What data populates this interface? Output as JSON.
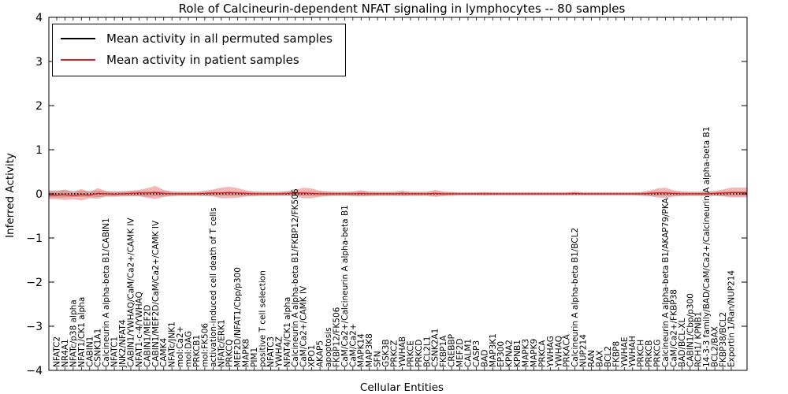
{
  "chart_data": {
    "type": "line",
    "title": "Role of Calcineurin-dependent NFAT signaling in lymphocytes -- 80 samples",
    "xlabel": "Cellular Entities",
    "ylabel": "Inferred Activity",
    "ylim": [
      -4,
      4
    ],
    "ytick_values": [
      -4,
      -3,
      -2,
      -1,
      0,
      1,
      2,
      3,
      4
    ],
    "ytick_labels": [
      "−4",
      "−3",
      "−2",
      "−1",
      "0",
      "1",
      "2",
      "3",
      "4"
    ],
    "grid": false,
    "legend_position": "upper-left",
    "categories": [
      "NFATC2",
      "NR4A1",
      "NFATc/p38 alpha",
      "NFAT1/CK1 alpha",
      "CABIN1",
      "CSNK1A1",
      "Calcineurin A alpha-beta B1/CABIN1",
      "NFATC1",
      "JNK2/NFAT4",
      "CABIN1/YWHAQ/CaM/Ca2+/CAMK IV",
      "NFAT1-c-4/YWHAQ",
      "CABIN1/MEF2D",
      "CABIN1/MEF2D/CaM/Ca2+/CAMK IV",
      "CAMK4",
      "NFATc/JNK1",
      "mol:Ca2+",
      "mol:DAG",
      "PRKCB1",
      "mol:FK506",
      "activation-induced cell death of T cells",
      "NFATc/ERK1",
      "PRKCQ",
      "MEF2D/NFAT1/Cbp/p300",
      "MAPK8",
      "PIM1",
      "positive T cell selection",
      "NFATC3",
      "YWHAZ",
      "NFAT4/CK1 alpha",
      "Calcineurin A alpha-beta B1/FKBP12/FK506",
      "CaM/Ca2+/CAMK IV",
      "XPO1",
      "AKAP5",
      "apoptosis",
      "FKBP12/FK506",
      "CaM/Ca2+/Calcineurin A alpha-beta B1",
      "CaM/Ca2+",
      "MAPK14",
      "MAP3K8",
      "SFN",
      "GSK3B",
      "PRKCZ",
      "YWHAB",
      "PRKCE",
      "PRKCD",
      "BCL2L1",
      "CSNK2A1",
      "FKBP1A",
      "CREBBP",
      "MEF2D",
      "CALM1",
      "CASP3",
      "BAD",
      "MAP3K1",
      "EP300",
      "KPNA2",
      "KPNB1",
      "MAPK3",
      "MAPK9",
      "PRKCA",
      "YWHAG",
      "YWHAQ",
      "PRKACA",
      "Calcineurin A alpha-beta B1/BCL2",
      "NUP214",
      "RAN",
      "BAX",
      "BCL2",
      "FKBP8",
      "YWHAE",
      "YWHAH",
      "PRKCH",
      "PRKCB",
      "PRKCG",
      "Calcineurin A alpha-beta B1/AKAP79/PKA",
      "CaM/Ca2+/FKBP38",
      "BAD/BCL-XL",
      "CABIN1/Cbp/p300",
      "RCH1/ KPNB1",
      "14-3-3 family/BAD/CaM/Ca2+/Calcineurin A alpha-beta B1",
      "BCL2/BAX",
      "FKBP38/BCL2",
      "Exportin 1/Ran/NUP214"
    ],
    "series": [
      {
        "name": "Mean activity in all permuted samples",
        "line_color": "#000000",
        "band_color": "rgba(128,128,128,0.35)",
        "mean": 0,
        "std": [
          0.08,
          0.08,
          0.07,
          0.07,
          0.07,
          0.07,
          0.06,
          0.06,
          0.06,
          0.06,
          0.06,
          0.06,
          0.06,
          0.06,
          0.05,
          0.05,
          0.05,
          0.05,
          0.05,
          0.05,
          0.05,
          0.05,
          0.05,
          0.05,
          0.05,
          0.05,
          0.05,
          0.05,
          0.05,
          0.05,
          0.05,
          0.05,
          0.05,
          0.05,
          0.05,
          0.05,
          0.05,
          0.05,
          0.05,
          0.05,
          0.05,
          0.05,
          0.05,
          0.05,
          0.05,
          0.05,
          0.04,
          0.04,
          0.04,
          0.04,
          0.04,
          0.04,
          0.04,
          0.04,
          0.04,
          0.04,
          0.04,
          0.04,
          0.04,
          0.04,
          0.04,
          0.04,
          0.04,
          0.04,
          0.04,
          0.04,
          0.04,
          0.04,
          0.04,
          0.04,
          0.04,
          0.04,
          0.05,
          0.05,
          0.05,
          0.05,
          0.05,
          0.05,
          0.05,
          0.05,
          0.05,
          0.05,
          0.05
        ]
      },
      {
        "name": "Mean activity in patient samples",
        "line_color": "#dd2222",
        "band_color": "rgba(225,40,40,0.34)",
        "mean": [
          -0.03,
          -0.02,
          -0.04,
          -0.02,
          -0.03,
          0.01,
          0,
          -0.01,
          0,
          0.01,
          0.02,
          0.02,
          0.03,
          0.01,
          0,
          0,
          0,
          0,
          0.01,
          0.02,
          0.02,
          0.03,
          0.02,
          0.01,
          0,
          0,
          0,
          0,
          0.01,
          0.02,
          0.02,
          0.01,
          0,
          0,
          0,
          0,
          0,
          0.01,
          0,
          0,
          0,
          0,
          0.01,
          0,
          0,
          0,
          0.01,
          0,
          0,
          0,
          0,
          0,
          0,
          0,
          0,
          0,
          0,
          0,
          0,
          0,
          0,
          0,
          0,
          0.01,
          0,
          0,
          0,
          0,
          0,
          0,
          0,
          0,
          0.01,
          0.02,
          0.02,
          0.01,
          0,
          0,
          0,
          0,
          0.01,
          0.02,
          0.03
        ],
        "std": [
          0.09,
          0.12,
          0.08,
          0.13,
          0.07,
          0.12,
          0.06,
          0.05,
          0.05,
          0.06,
          0.07,
          0.11,
          0.15,
          0.08,
          0.05,
          0.04,
          0.04,
          0.04,
          0.06,
          0.08,
          0.12,
          0.13,
          0.11,
          0.07,
          0.05,
          0.04,
          0.04,
          0.04,
          0.05,
          0.07,
          0.12,
          0.11,
          0.07,
          0.05,
          0.04,
          0.04,
          0.05,
          0.07,
          0.05,
          0.04,
          0.04,
          0.04,
          0.06,
          0.04,
          0.04,
          0.04,
          0.08,
          0.05,
          0.04,
          0.03,
          0.03,
          0.03,
          0.04,
          0.03,
          0.03,
          0.03,
          0.03,
          0.03,
          0.03,
          0.03,
          0.03,
          0.03,
          0.03,
          0.04,
          0.03,
          0.03,
          0.03,
          0.03,
          0.03,
          0.03,
          0.03,
          0.04,
          0.06,
          0.1,
          0.12,
          0.07,
          0.05,
          0.04,
          0.04,
          0.05,
          0.05,
          0.08,
          0.11
        ]
      }
    ]
  },
  "legend": {
    "entries": [
      {
        "label": "Mean activity in all permuted samples",
        "color": "#000000"
      },
      {
        "label": "Mean activity in patient samples",
        "color": "#dd2222"
      }
    ]
  }
}
